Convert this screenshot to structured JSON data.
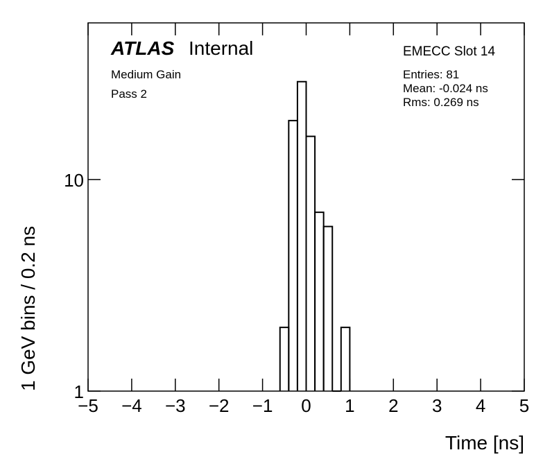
{
  "chart_data": {
    "type": "histogram",
    "title": "ATLAS",
    "subtitle": "Internal",
    "annotations": [
      "Medium Gain",
      "Pass 2"
    ],
    "stats_title": "EMECC Slot 14",
    "stats": [
      "Entries: 81",
      "Mean: -0.024 ns",
      "Rms: 0.269 ns"
    ],
    "x_label": "Time [ns]",
    "y_label": "1 GeV bins / 0.2 ns",
    "bins": [
      -0.6,
      -0.4,
      -0.2,
      0,
      0.2,
      0.4,
      0.6,
      0.8,
      1.0
    ],
    "values": [
      2,
      19,
      29,
      16,
      7,
      6,
      0,
      2
    ],
    "color": "#000000",
    "xlim": [
      -5,
      5
    ],
    "xticks": [
      {
        "value": -5,
        "label": "−5"
      },
      {
        "value": -4,
        "label": "−4"
      },
      {
        "value": -3,
        "label": "−3"
      },
      {
        "value": -2,
        "label": "−2"
      },
      {
        "value": -1,
        "label": "−1"
      },
      0,
      1,
      2,
      3,
      4,
      5
    ],
    "ylim": [
      1,
      55
    ],
    "yticks": [
      1,
      10
    ],
    "log_y": true
  }
}
